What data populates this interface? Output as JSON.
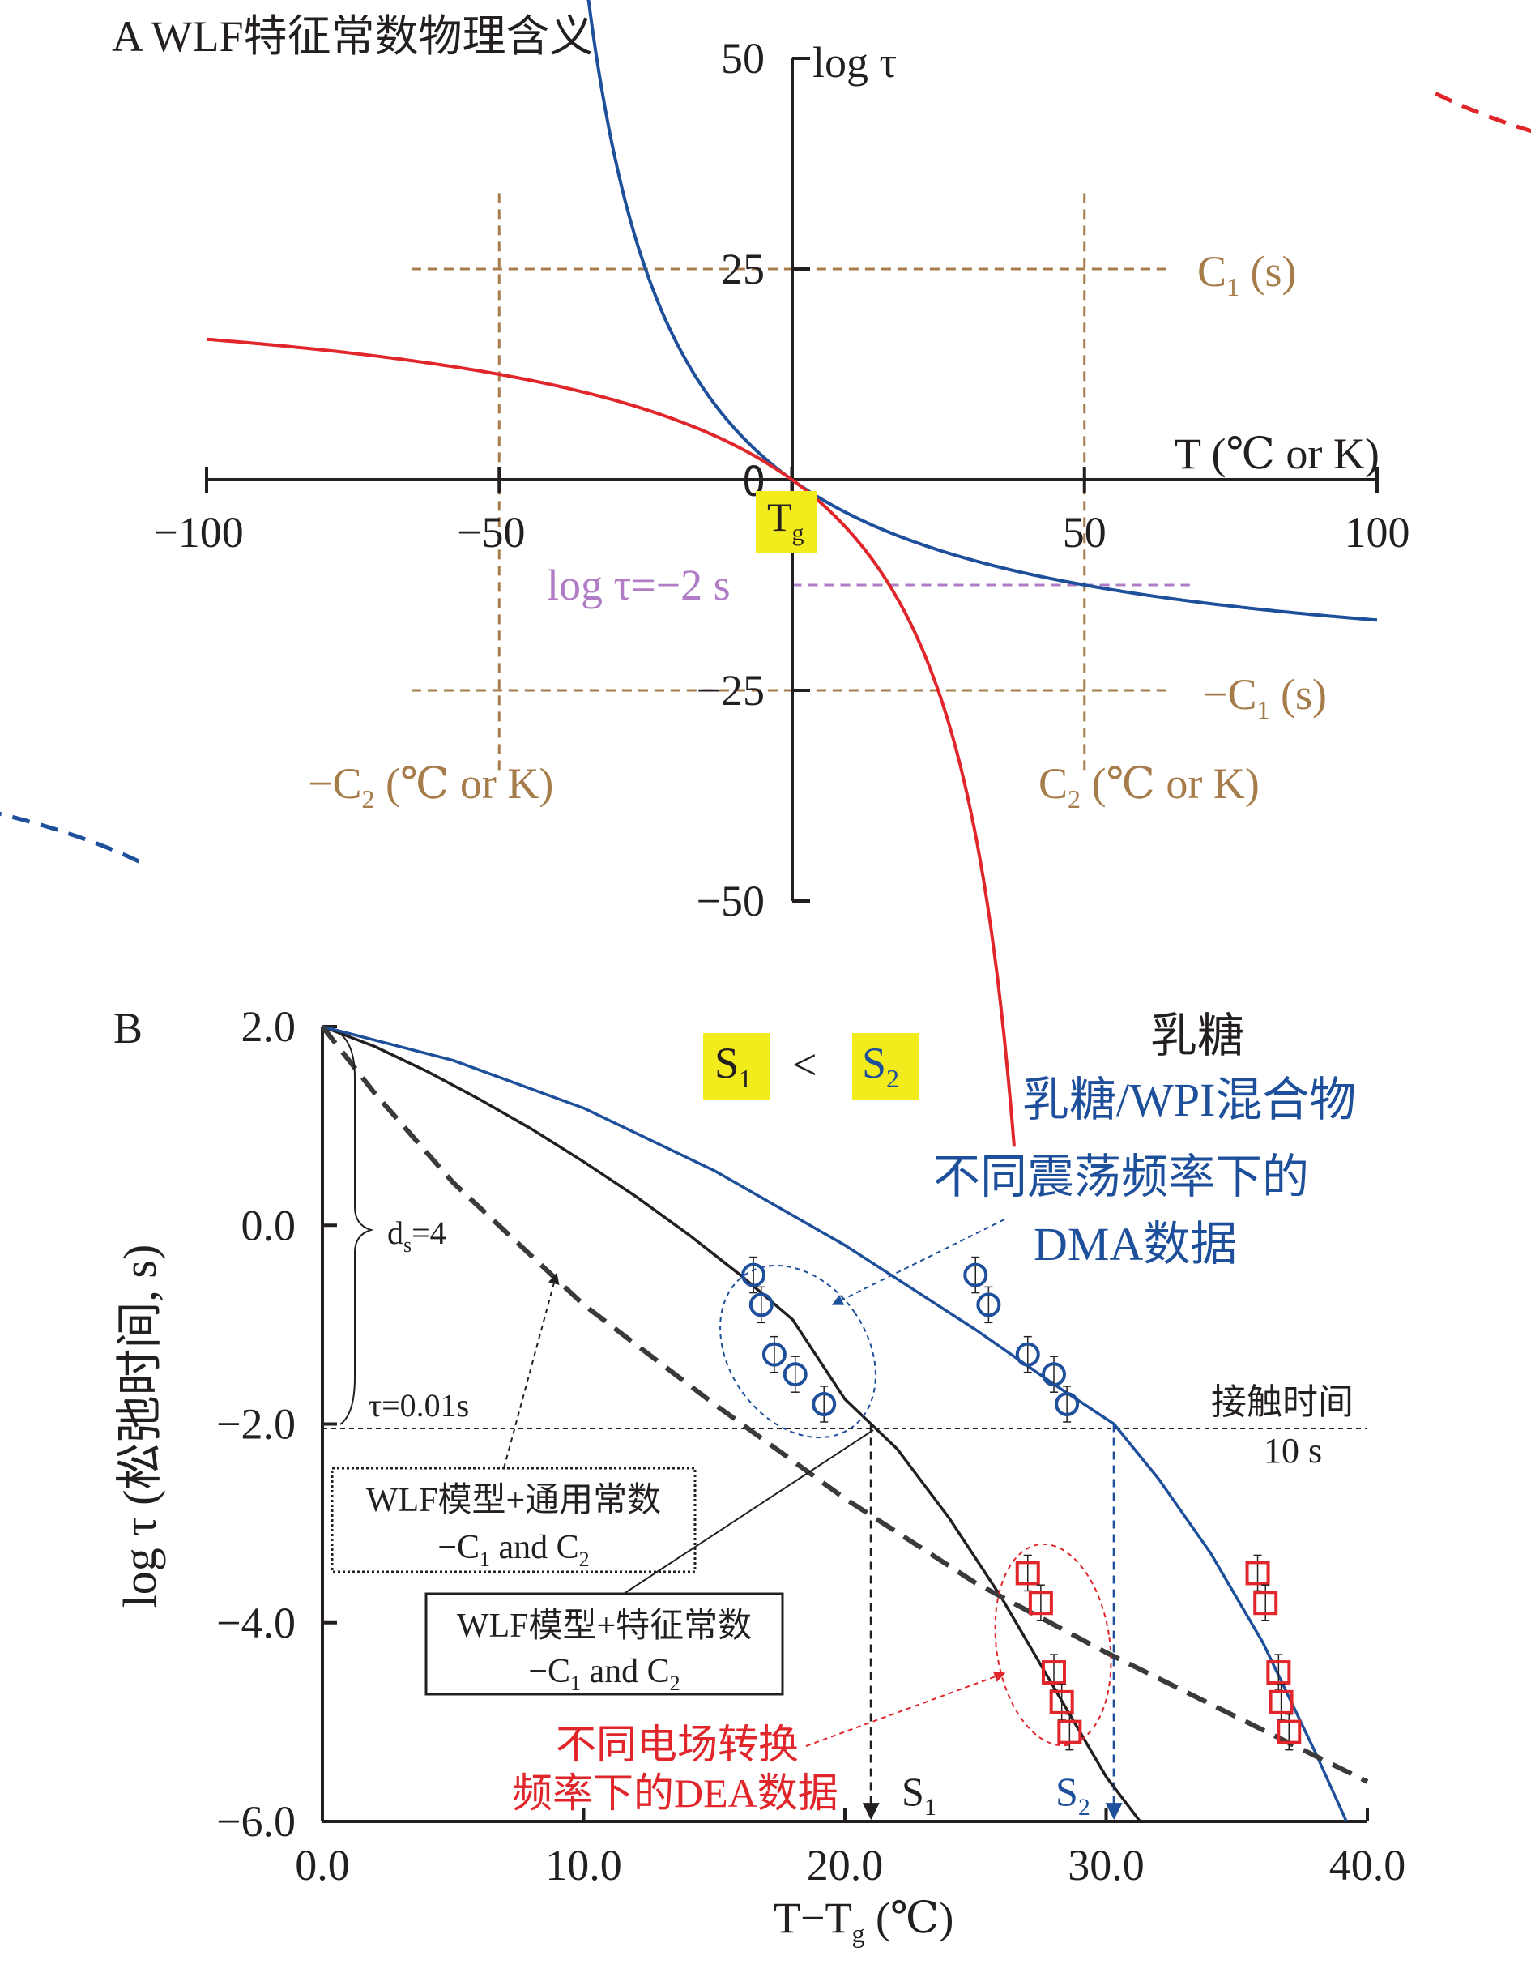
{
  "colors": {
    "black": "#231f20",
    "blue": "#1d4f9b",
    "red": "#e0262b",
    "brown": "#a57c4a",
    "purple": "#b07cc6",
    "highlight": "#f3ec1d"
  },
  "chart_data": [
    {
      "panel": "A",
      "type": "line",
      "title": "A WLF特征常数物理含义",
      "xlabel": "T (℃ or K)",
      "ylabel": "log τ",
      "xlim": [
        -100,
        100
      ],
      "ylim": [
        -50,
        50
      ],
      "x_ticks": [
        -100,
        -50,
        0,
        50,
        100
      ],
      "x_tick_labels": [
        "−100",
        "−50",
        "0",
        "50",
        "100"
      ],
      "y_ticks": [
        50,
        25,
        0,
        -25,
        -50
      ],
      "y_tick_labels": [
        "50",
        "25",
        "0",
        "−25",
        "−50"
      ],
      "tg_label": "Tg",
      "series": [
        {
          "name": "WLF (blue)",
          "color": "blue",
          "style": "solid",
          "C1": 25,
          "C2": 50,
          "x_range": [
            -37,
            100
          ]
        },
        {
          "name": "WLF (red)",
          "color": "red",
          "style": "solid",
          "C1": -25,
          "C2": -50,
          "x_range": [
            -100,
            38
          ]
        },
        {
          "name": "blue branch",
          "color": "blue",
          "style": "dashed",
          "C1": 25,
          "C2": 50,
          "x_range": [
            -138,
            -110
          ]
        },
        {
          "name": "red branch",
          "color": "red",
          "style": "dashed",
          "C1": -25,
          "C2": -50,
          "x_range": [
            110,
            135
          ]
        }
      ],
      "reference_lines": [
        {
          "orientation": "h",
          "value": 25,
          "range": [
            -65,
            65
          ],
          "color": "brown",
          "label": "C1 (s)"
        },
        {
          "orientation": "h",
          "value": -25,
          "range": [
            -65,
            65
          ],
          "color": "brown",
          "label": "−C1 (s)"
        },
        {
          "orientation": "v",
          "value": -50,
          "range": [
            -35,
            34
          ],
          "color": "brown",
          "label": "−C2 (℃ or K)"
        },
        {
          "orientation": "v",
          "value": 50,
          "range": [
            -35,
            34
          ],
          "color": "brown",
          "label": "C2 (℃ or K)"
        },
        {
          "orientation": "h",
          "value": -12.5,
          "range": [
            0,
            68
          ],
          "color": "purple",
          "label": "log τ=−2 s"
        }
      ]
    },
    {
      "panel": "B",
      "type": "line",
      "panel_label": "B",
      "xlabel": "T−Tg (℃)",
      "ylabel": "log τ (松弛时间, s)",
      "xlim": [
        0,
        40
      ],
      "ylim": [
        -6,
        2
      ],
      "x_ticks": [
        0,
        10,
        20,
        30,
        40
      ],
      "x_tick_labels": [
        "0.0",
        "10.0",
        "20.0",
        "30.0",
        "40.0"
      ],
      "y_ticks": [
        2,
        0,
        -2,
        -4,
        -6
      ],
      "y_tick_labels": [
        "2.0",
        "0.0",
        "−2.0",
        "−4.0",
        "−6.0"
      ],
      "series": [
        {
          "name": "WLF模型+特征常数 (乳糖)",
          "color": "black",
          "style": "solid",
          "x": [
            0,
            2,
            4,
            6,
            8,
            10,
            12,
            14,
            16,
            18,
            20,
            21,
            22,
            24,
            26,
            28,
            30,
            31.3
          ],
          "y": [
            2.0,
            1.8,
            1.55,
            1.27,
            0.97,
            0.64,
            0.29,
            -0.09,
            -0.5,
            -0.95,
            -1.75,
            -2.0,
            -2.25,
            -2.95,
            -3.75,
            -4.65,
            -5.55,
            -6.0
          ]
        },
        {
          "name": "WLF模型+特征常数 (乳糖/WPI混合物)",
          "color": "blue",
          "style": "solid",
          "x": [
            0,
            5,
            10,
            15,
            20,
            25,
            28,
            30.3,
            32,
            34,
            36,
            38,
            39.2
          ],
          "y": [
            2.0,
            1.66,
            1.18,
            0.55,
            -0.2,
            -1.05,
            -1.6,
            -2.0,
            -2.55,
            -3.3,
            -4.2,
            -5.3,
            -6.0
          ]
        },
        {
          "name": "WLF模型+通用常数",
          "color": "black",
          "style": "dashed",
          "x": [
            0,
            2,
            5,
            10,
            15,
            20,
            25,
            30,
            35,
            40
          ],
          "y": [
            2.0,
            1.33,
            0.43,
            -0.8,
            -1.8,
            -2.75,
            -3.6,
            -4.3,
            -4.95,
            -5.6
          ]
        },
        {
          "name": "DMA 乳糖",
          "color": "blue",
          "style": "markers",
          "marker": "circle",
          "x": [
            16.5,
            16.8,
            17.3,
            18.1,
            19.2
          ],
          "y": [
            -0.5,
            -0.8,
            -1.3,
            -1.5,
            -1.8
          ]
        },
        {
          "name": "DMA 乳糖/WPI",
          "color": "blue",
          "style": "markers",
          "marker": "circle",
          "x": [
            25.0,
            25.5,
            27.0,
            28.0,
            28.5
          ],
          "y": [
            -0.5,
            -0.8,
            -1.3,
            -1.5,
            -1.8
          ]
        },
        {
          "name": "DEA 乳糖",
          "color": "red",
          "style": "markers",
          "marker": "square",
          "x": [
            27.0,
            27.5,
            28.0,
            28.3,
            28.6
          ],
          "y": [
            -3.5,
            -3.8,
            -4.5,
            -4.8,
            -5.1
          ]
        },
        {
          "name": "DEA 乳糖/WPI",
          "color": "red",
          "style": "markers",
          "marker": "square",
          "x": [
            35.8,
            36.1,
            36.6,
            36.7,
            37.0
          ],
          "y": [
            -3.5,
            -3.8,
            -4.5,
            -4.8,
            -5.1
          ]
        }
      ],
      "contact_line": {
        "y": -2.0,
        "label1": "接触时间",
        "label2": "10 s"
      },
      "s1": {
        "x": 21.0,
        "label": "S1"
      },
      "s2": {
        "x": 30.3,
        "label": "S2"
      },
      "relation": "<",
      "annotations": {
        "ds": "ds=4",
        "tau": "τ=0.01s",
        "legend_black": "乳糖",
        "legend_blue": "乳糖/WPI混合物",
        "dma_line1": "不同震荡频率下的",
        "dma_line2": "DMA数据",
        "dea_line1": "不同电场转换",
        "dea_line2": "频率下的DEA数据",
        "universal_line1": "WLF模型+通用常数",
        "universal_line2": "−C1 and C2",
        "specific_line1": "WLF模型+特征常数",
        "specific_line2": "−C1 and C2"
      }
    }
  ]
}
